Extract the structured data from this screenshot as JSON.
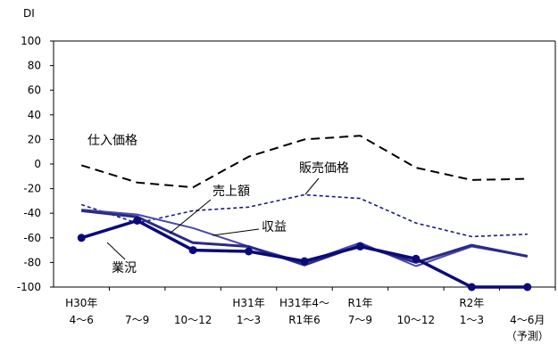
{
  "chart_data": {
    "type": "line",
    "ylabel": "DI",
    "ylim": [
      -100,
      100
    ],
    "yticks": [
      100,
      80,
      60,
      40,
      20,
      0,
      -20,
      -40,
      -60,
      -80,
      -100
    ],
    "grid": false,
    "categories": [
      {
        "line1": "H30年",
        "line2": "4～6",
        "line3": ""
      },
      {
        "line1": "",
        "line2": "7～9",
        "line3": ""
      },
      {
        "line1": "",
        "line2": "10～12",
        "line3": ""
      },
      {
        "line1": "H31年",
        "line2": "1～3",
        "line3": ""
      },
      {
        "line1": "H31年4～",
        "line2": "R1年6",
        "line3": ""
      },
      {
        "line1": "R1年",
        "line2": "7～9",
        "line3": ""
      },
      {
        "line1": "",
        "line2": "10～12",
        "line3": ""
      },
      {
        "line1": "R2年",
        "line2": "1～3",
        "line3": ""
      },
      {
        "line1": "",
        "line2": "4～6月",
        "line3": "（予測）"
      }
    ],
    "series": [
      {
        "name": "仕入価格",
        "values": [
          -1,
          -15,
          -19,
          6,
          20,
          23,
          -3,
          -13,
          -12
        ],
        "color": "#000000",
        "style": "long-dash"
      },
      {
        "name": "販売価格",
        "values": [
          -33,
          -48,
          -38,
          -35,
          -25,
          -28,
          -48,
          -59,
          -57
        ],
        "color": "#1a1a8c",
        "style": "short-dash"
      },
      {
        "name": "収益",
        "values": [
          -37,
          -41,
          -52,
          -67,
          -80,
          -64,
          -83,
          -67,
          -75
        ],
        "color": "#4a4aa8",
        "style": "solid"
      },
      {
        "name": "売上額",
        "values": [
          -38,
          -43,
          -64,
          -67,
          -82,
          -66,
          -80,
          -66,
          -75
        ],
        "color": "#2a2a88",
        "style": "solid-thick"
      },
      {
        "name": "業況",
        "values": [
          -60,
          -46,
          -70,
          -71,
          -79,
          -67,
          -77,
          -100,
          -100
        ],
        "color": "#0a0a78",
        "style": "solid-markers"
      }
    ],
    "annotations": [
      "仕入価格",
      "販売価格",
      "売上額",
      "収益",
      "業況"
    ]
  }
}
